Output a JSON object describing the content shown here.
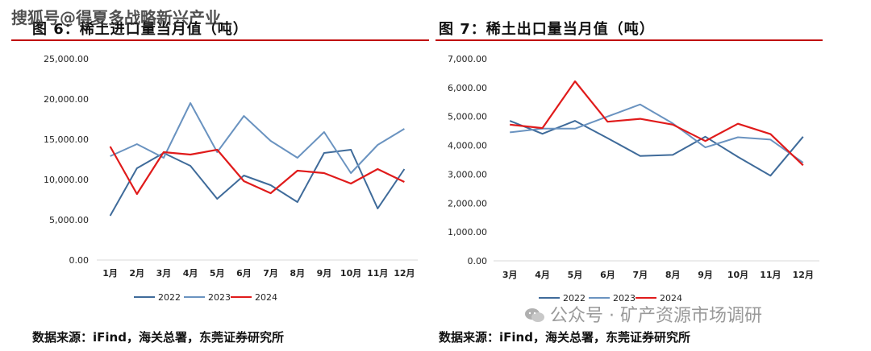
{
  "watermarks": {
    "top": "搜狐号@得夏多战略新兴产业",
    "bottom": "公众号 · 矿产资源市场调研",
    "bottom_icon": "wechat-icon"
  },
  "colors": {
    "accent_rule": "#c00000",
    "series_2022": "#3f6b9a",
    "series_2023": "#6a93c0",
    "series_2024": "#e01b1b",
    "axis": "#d9d9d9"
  },
  "panels": [
    {
      "title": "图 6：稀土进口量当月值（吨）",
      "source": "数据来源：iFind，海关总署，东莞证券研究所"
    },
    {
      "title": "图 7：稀土出口量当月值（吨）",
      "source": "数据来源：iFind，海关总署，东莞证券研究所"
    }
  ],
  "chart_data": [
    {
      "type": "line",
      "title": "图 6：稀土进口量当月值（吨）",
      "categories": [
        "1月",
        "2月",
        "3月",
        "4月",
        "5月",
        "6月",
        "7月",
        "8月",
        "9月",
        "10月",
        "11月",
        "12月"
      ],
      "ylim": [
        0,
        25000
      ],
      "yticks": [
        "0.00",
        "5,000.00",
        "10,000.00",
        "15,000.00",
        "20,000.00",
        "25,000.00"
      ],
      "ytick_values": [
        0,
        5000,
        10000,
        15000,
        20000,
        25000
      ],
      "grid": false,
      "legend_position": "bottom",
      "series": [
        {
          "name": "2022",
          "values": [
            5500,
            11400,
            13300,
            11700,
            7600,
            10500,
            9300,
            7200,
            13300,
            13700,
            6400,
            11300
          ]
        },
        {
          "name": "2023",
          "values": [
            12900,
            14400,
            12700,
            19500,
            13400,
            17900,
            14800,
            12700,
            15900,
            10800,
            14300,
            16300
          ]
        },
        {
          "name": "2024",
          "values": [
            14100,
            8200,
            13400,
            13100,
            13700,
            9800,
            8300,
            11100,
            10800,
            9500,
            11300,
            9700
          ]
        }
      ]
    },
    {
      "type": "line",
      "title": "图 7：稀土出口量当月值（吨）",
      "categories": [
        "3月",
        "4月",
        "5月",
        "6月",
        "7月",
        "8月",
        "9月",
        "10月",
        "11月",
        "12月"
      ],
      "ylim": [
        0,
        7000
      ],
      "yticks": [
        "0.00",
        "1,000.00",
        "2,000.00",
        "3,000.00",
        "4,000.00",
        "5,000.00",
        "6,000.00",
        "7,000.00"
      ],
      "ytick_values": [
        0,
        1000,
        2000,
        3000,
        4000,
        5000,
        6000,
        7000
      ],
      "grid": false,
      "legend_position": "bottom",
      "series": [
        {
          "name": "2022",
          "values": [
            4850,
            4400,
            4850,
            4250,
            3630,
            3670,
            4300,
            3600,
            2950,
            4300
          ]
        },
        {
          "name": "2023",
          "values": [
            4450,
            4580,
            4580,
            5000,
            5420,
            4760,
            3930,
            4280,
            4200,
            3400
          ]
        },
        {
          "name": "2024",
          "values": [
            4720,
            4600,
            6220,
            4820,
            4920,
            4720,
            4150,
            4750,
            4390,
            3310
          ]
        }
      ]
    }
  ]
}
